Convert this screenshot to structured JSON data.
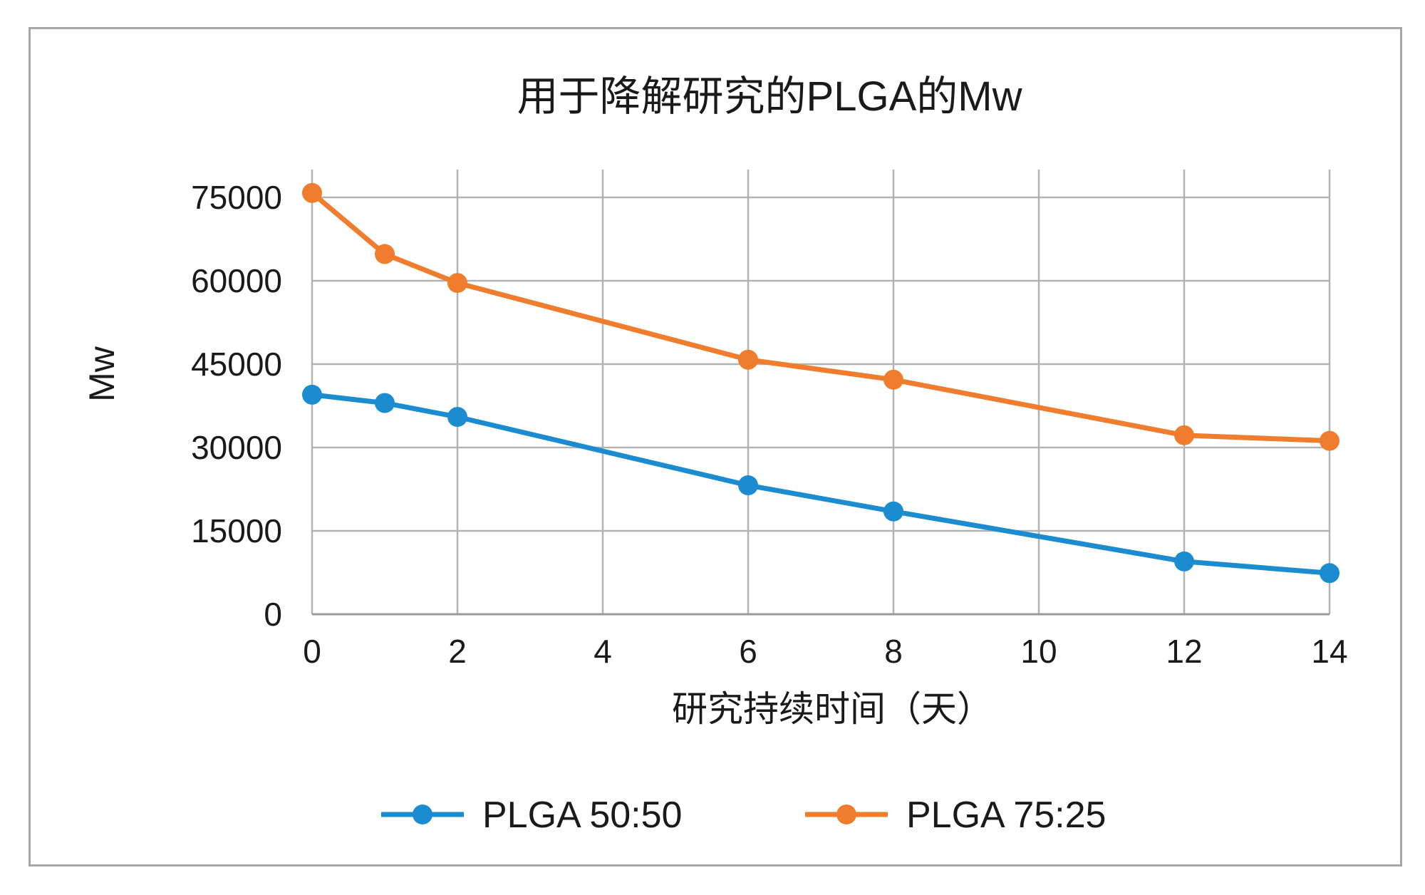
{
  "chart_data": {
    "type": "line",
    "title": "用于降解研究的PLGA的Mw",
    "xlabel": "研究持续时间（天）",
    "ylabel": "Mw",
    "x": [
      0,
      1,
      2,
      6,
      8,
      12,
      14
    ],
    "xticks": [
      "0",
      "2",
      "4",
      "6",
      "8",
      "10",
      "12",
      "14"
    ],
    "yticks": [
      "0",
      "15000",
      "30000",
      "45000",
      "60000",
      "75000"
    ],
    "xlim": [
      0,
      14
    ],
    "ylim": [
      0,
      80000
    ],
    "grid": true,
    "legend_position": "bottom",
    "series": [
      {
        "name": "PLGA 50:50",
        "color": "#1a8ccf",
        "values": [
          39500,
          38000,
          35500,
          23200,
          18500,
          9500,
          7400
        ]
      },
      {
        "name": "PLGA 75:25",
        "color": "#ef7d2d",
        "values": [
          75800,
          64800,
          59600,
          45800,
          42200,
          32200,
          31200
        ]
      }
    ]
  }
}
